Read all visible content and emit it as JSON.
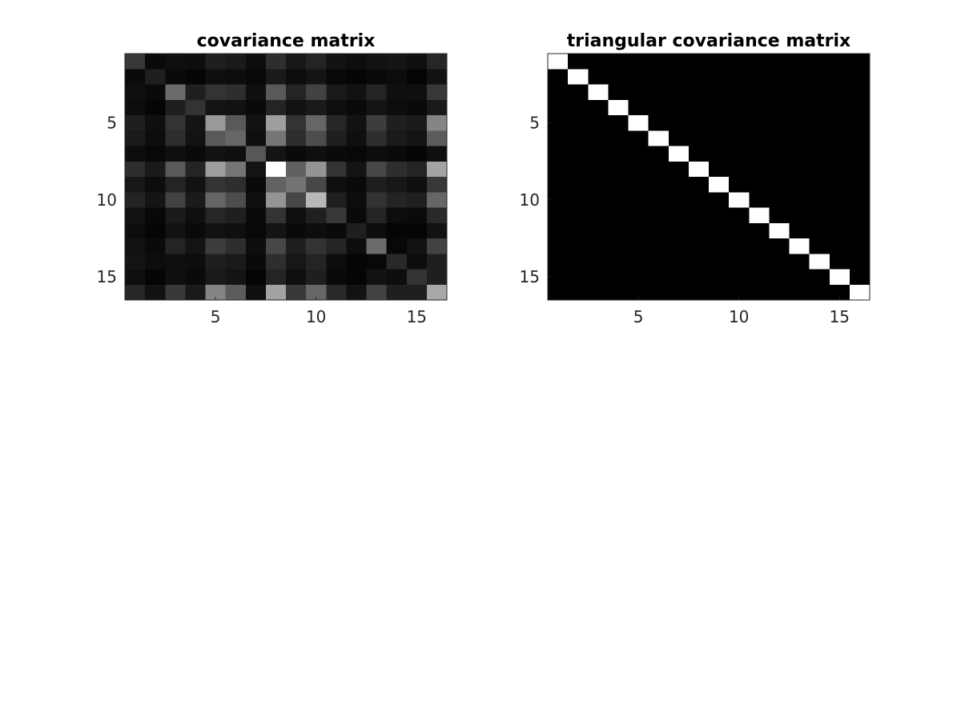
{
  "chart_data": [
    {
      "type": "heatmap",
      "title": "covariance matrix",
      "xlabel": "",
      "ylabel": "",
      "colormap": "gray",
      "xlim": [
        0.5,
        16.5
      ],
      "ylim": [
        0.5,
        16.5
      ],
      "y_direction": "reverse",
      "grid": false,
      "xticks": [
        5,
        10,
        15
      ],
      "yticks": [
        5,
        10,
        15
      ],
      "xtick_labels": [
        "5",
        "10",
        "15"
      ],
      "ytick_labels": [
        "5",
        "10",
        "15"
      ],
      "rows": 16,
      "cols": 16,
      "values": [
        [
          0.22,
          0.04,
          0.06,
          0.05,
          0.12,
          0.1,
          0.05,
          0.18,
          0.09,
          0.14,
          0.07,
          0.05,
          0.07,
          0.08,
          0.06,
          0.15
        ],
        [
          0.04,
          0.12,
          0.04,
          0.02,
          0.06,
          0.05,
          0.03,
          0.1,
          0.05,
          0.08,
          0.03,
          0.02,
          0.04,
          0.05,
          0.02,
          0.07
        ],
        [
          0.06,
          0.04,
          0.42,
          0.12,
          0.2,
          0.18,
          0.06,
          0.35,
          0.14,
          0.26,
          0.1,
          0.07,
          0.14,
          0.06,
          0.06,
          0.22
        ],
        [
          0.05,
          0.02,
          0.12,
          0.2,
          0.08,
          0.07,
          0.04,
          0.14,
          0.07,
          0.1,
          0.06,
          0.04,
          0.08,
          0.05,
          0.04,
          0.1
        ],
        [
          0.12,
          0.06,
          0.2,
          0.08,
          0.6,
          0.35,
          0.07,
          0.62,
          0.2,
          0.4,
          0.15,
          0.07,
          0.24,
          0.12,
          0.1,
          0.52
        ],
        [
          0.1,
          0.05,
          0.18,
          0.07,
          0.35,
          0.4,
          0.06,
          0.46,
          0.18,
          0.3,
          0.12,
          0.06,
          0.18,
          0.1,
          0.08,
          0.36
        ],
        [
          0.05,
          0.03,
          0.06,
          0.04,
          0.07,
          0.06,
          0.34,
          0.08,
          0.04,
          0.06,
          0.04,
          0.03,
          0.05,
          0.04,
          0.02,
          0.06
        ],
        [
          0.18,
          0.1,
          0.35,
          0.14,
          0.62,
          0.46,
          0.08,
          1.0,
          0.38,
          0.58,
          0.2,
          0.08,
          0.28,
          0.18,
          0.14,
          0.64
        ],
        [
          0.09,
          0.05,
          0.14,
          0.07,
          0.2,
          0.18,
          0.04,
          0.38,
          0.45,
          0.28,
          0.06,
          0.04,
          0.12,
          0.09,
          0.06,
          0.22
        ],
        [
          0.14,
          0.08,
          0.26,
          0.1,
          0.4,
          0.3,
          0.06,
          0.58,
          0.28,
          0.72,
          0.12,
          0.05,
          0.2,
          0.14,
          0.12,
          0.4
        ],
        [
          0.07,
          0.03,
          0.1,
          0.06,
          0.15,
          0.12,
          0.04,
          0.2,
          0.06,
          0.12,
          0.22,
          0.04,
          0.14,
          0.05,
          0.04,
          0.16
        ],
        [
          0.05,
          0.02,
          0.07,
          0.04,
          0.07,
          0.06,
          0.03,
          0.08,
          0.04,
          0.05,
          0.04,
          0.12,
          0.05,
          0.02,
          0.02,
          0.07
        ],
        [
          0.07,
          0.04,
          0.14,
          0.08,
          0.24,
          0.18,
          0.05,
          0.28,
          0.12,
          0.2,
          0.14,
          0.05,
          0.42,
          0.03,
          0.07,
          0.26
        ],
        [
          0.08,
          0.05,
          0.06,
          0.05,
          0.12,
          0.1,
          0.04,
          0.18,
          0.09,
          0.14,
          0.05,
          0.02,
          0.03,
          0.16,
          0.05,
          0.12
        ],
        [
          0.06,
          0.02,
          0.06,
          0.04,
          0.1,
          0.08,
          0.02,
          0.14,
          0.06,
          0.12,
          0.04,
          0.02,
          0.07,
          0.05,
          0.2,
          0.12
        ],
        [
          0.15,
          0.07,
          0.22,
          0.1,
          0.52,
          0.36,
          0.06,
          0.64,
          0.22,
          0.4,
          0.16,
          0.07,
          0.26,
          0.12,
          0.12,
          0.66
        ]
      ]
    },
    {
      "type": "heatmap",
      "title": "triangular covariance matrix",
      "xlabel": "",
      "ylabel": "",
      "colormap": "gray",
      "xlim": [
        0.5,
        16.5
      ],
      "ylim": [
        0.5,
        16.5
      ],
      "y_direction": "reverse",
      "grid": false,
      "xticks": [
        5,
        10,
        15
      ],
      "yticks": [
        5,
        10,
        15
      ],
      "xtick_labels": [
        "5",
        "10",
        "15"
      ],
      "ytick_labels": [
        "5",
        "10",
        "15"
      ],
      "rows": 16,
      "cols": 16,
      "diagonal_value": 1,
      "off_diagonal_value": 0
    }
  ]
}
